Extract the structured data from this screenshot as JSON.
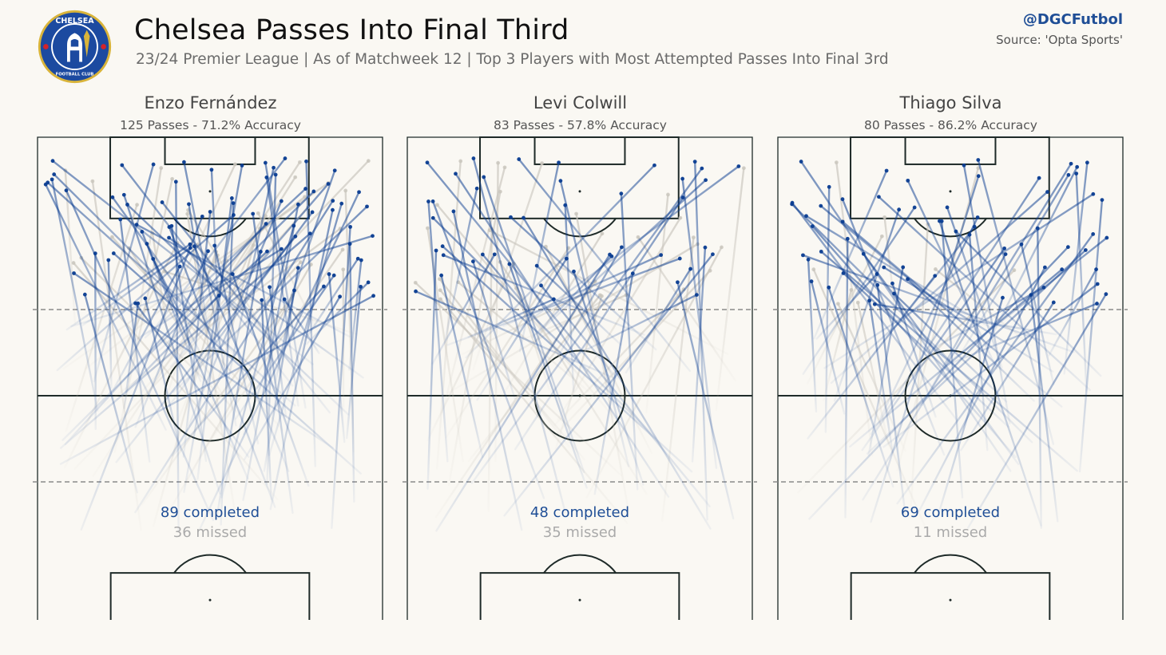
{
  "header": {
    "title": "Chelsea Passes Into Final Third",
    "subtitle": "23/24 Premier League | As of Matchweek 12 | Top 3 Players with Most Attempted Passes Into Final 3rd",
    "handle": "@DGCFutbol",
    "source": "Source: 'Opta Sports'"
  },
  "logo": {
    "text_top": "CHELSEA",
    "text_bottom": "FOOTBALL CLUB",
    "colors": {
      "primary": "#1c4aa0",
      "gold": "#d9b43a",
      "red": "#d2232a"
    }
  },
  "colors": {
    "completed": "#0b3d91",
    "missed": "#c9c5bd",
    "pitch_line": "#1e2a28",
    "third_line": "#8a8a8a",
    "background": "#faf8f3"
  },
  "chart_data": [
    {
      "type": "scatter",
      "player": "Enzo Fernández",
      "summary": "125 Passes - 71.2% Accuracy",
      "completed_label": "89 completed",
      "missed_label": "36 missed",
      "total_passes": 125,
      "accuracy_pct": 71.2,
      "completed": 89,
      "missed": 36,
      "seed": 11
    },
    {
      "type": "scatter",
      "player": "Levi Colwill",
      "summary": "83 Passes - 57.8% Accuracy",
      "completed_label": "48 completed",
      "missed_label": "35 missed",
      "total_passes": 83,
      "accuracy_pct": 57.8,
      "completed": 48,
      "missed": 35,
      "seed": 23
    },
    {
      "type": "scatter",
      "player": "Thiago Silva",
      "summary": "80 Passes - 86.2% Accuracy",
      "completed_label": "69 completed",
      "missed_label": "11 missed",
      "total_passes": 80,
      "accuracy_pct": 86.2,
      "completed": 69,
      "missed": 11,
      "seed": 37
    }
  ]
}
